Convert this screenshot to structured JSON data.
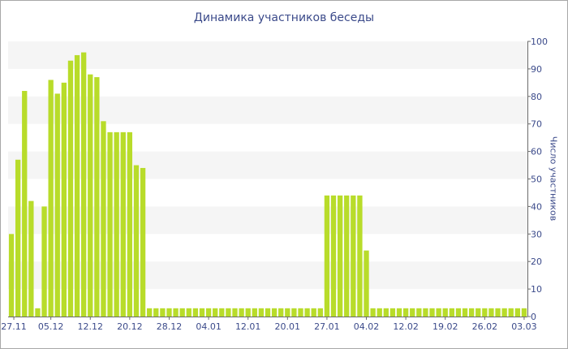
{
  "chart_data": {
    "type": "bar",
    "title": "Динамика участников беседы",
    "xlabel": "",
    "ylabel": "Число участников",
    "ylim": [
      0,
      100
    ],
    "yticks": [
      0,
      10,
      20,
      30,
      40,
      50,
      60,
      70,
      80,
      90,
      100
    ],
    "xtick_labels": [
      "27.11",
      "05.12",
      "12.12",
      "20.12",
      "28.12",
      "04.01",
      "12.01",
      "20.01",
      "27.01",
      "04.02",
      "12.02",
      "19.02",
      "26.02",
      "03.03"
    ],
    "grid": true,
    "color": "#b8dc2a",
    "values": [
      30,
      57,
      82,
      42,
      3,
      40,
      86,
      81,
      85,
      93,
      95,
      96,
      88,
      87,
      71,
      67,
      67,
      67,
      67,
      55,
      54,
      3,
      3,
      3,
      3,
      3,
      3,
      3,
      3,
      3,
      3,
      3,
      3,
      3,
      3,
      3,
      3,
      3,
      3,
      3,
      3,
      3,
      3,
      3,
      3,
      3,
      3,
      3,
      44,
      44,
      44,
      44,
      44,
      44,
      24,
      3,
      3,
      3,
      3,
      3,
      3,
      3,
      3,
      3,
      3,
      3,
      3,
      3,
      3,
      3,
      3,
      3,
      3,
      3,
      3,
      3,
      3,
      3,
      3
    ]
  }
}
